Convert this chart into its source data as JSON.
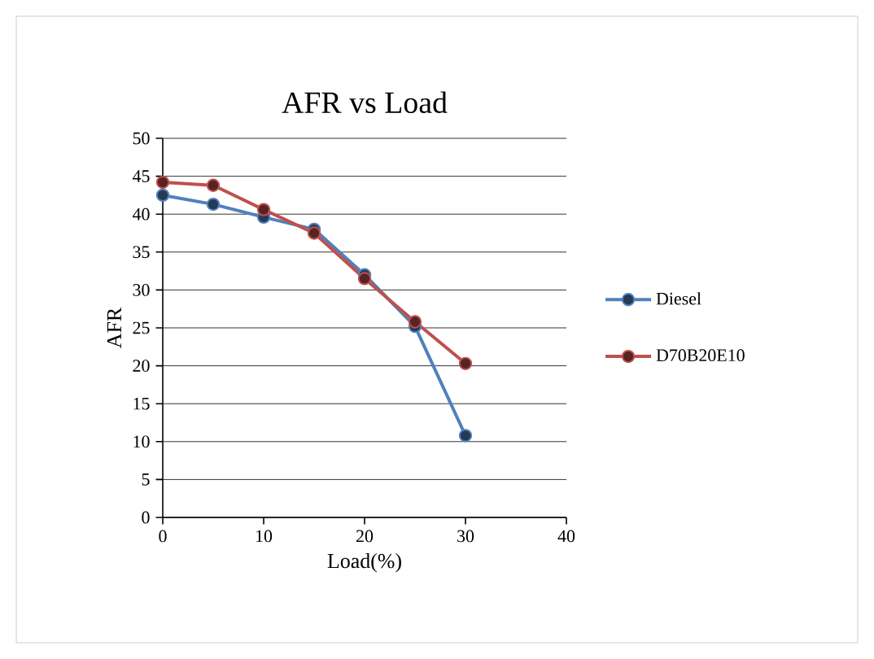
{
  "chart_data": {
    "type": "line",
    "title": "AFR vs Load",
    "xlabel": "Load(%)",
    "ylabel": "AFR",
    "x": [
      0,
      5,
      10,
      15,
      20,
      25,
      30
    ],
    "series": [
      {
        "name": "Diesel",
        "color": "#4f81bd",
        "values": [
          42.5,
          41.3,
          39.6,
          38,
          32,
          25.2,
          10.8
        ]
      },
      {
        "name": "D70B20E10",
        "color": "#c0504d",
        "values": [
          44.2,
          43.8,
          40.6,
          37.5,
          31.5,
          25.8,
          20.3
        ]
      }
    ],
    "xlim": [
      0,
      40
    ],
    "xticks": [
      0,
      10,
      20,
      30,
      40
    ],
    "ylim": [
      0,
      50
    ],
    "yticks": [
      0,
      5,
      10,
      15,
      20,
      25,
      30,
      35,
      40,
      45,
      50
    ],
    "grid": "y",
    "legend": "right",
    "marker": "circle",
    "line_style": "solid"
  }
}
